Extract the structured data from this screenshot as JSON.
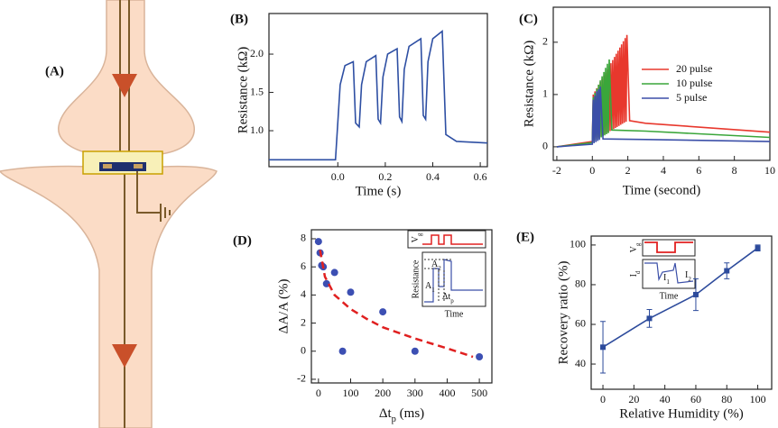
{
  "figure": {
    "panel_a_label": "(A)"
  },
  "chart_data": [
    {
      "type": "line",
      "label": "(B)",
      "x_label": "Time (s)",
      "y_label": "Resistance (kΩ)",
      "xlim": [
        -0.29,
        0.63
      ],
      "ylim": [
        0.53,
        2.53
      ],
      "xticks": [
        {
          "value": 0,
          "label": "0.0"
        },
        0.2,
        0.4,
        0.6
      ],
      "yticks": [
        {
          "value": 1,
          "label": "1.0"
        },
        1.5,
        {
          "value": 2,
          "label": "2.0"
        }
      ],
      "series": [
        {
          "color": "#2e4fa3",
          "kind": "line",
          "x": [
            -0.29,
            -0.01,
            0.01,
            0.03,
            0.065,
            0.075,
            0.09,
            0.1,
            0.12,
            0.16,
            0.17,
            0.18,
            0.19,
            0.21,
            0.25,
            0.26,
            0.27,
            0.28,
            0.3,
            0.35,
            0.36,
            0.37,
            0.38,
            0.4,
            0.44,
            0.455,
            0.5,
            0.63
          ],
          "values": [
            0.62,
            0.62,
            1.6,
            1.85,
            1.9,
            1.1,
            1.05,
            1.6,
            1.9,
            1.98,
            1.15,
            1.1,
            1.7,
            2.0,
            2.07,
            1.18,
            1.12,
            1.8,
            2.1,
            2.2,
            1.2,
            1.15,
            1.9,
            2.2,
            2.3,
            0.95,
            0.86,
            0.84
          ]
        }
      ]
    },
    {
      "type": "line",
      "label": "(C)",
      "x_label": "Time (second)",
      "y_label": "Resistance (kΩ)",
      "xlim": [
        -2.2,
        10
      ],
      "ylim": [
        -0.26,
        2.67
      ],
      "xticks": [
        -2,
        0,
        2,
        4,
        6,
        8,
        10
      ],
      "yticks": [
        0,
        1,
        2
      ],
      "legend": "center right",
      "series": [
        {
          "name": "20 pulse",
          "color": "#e8382d",
          "kind": "line",
          "x": [
            -2,
            0,
            0.05,
            0.1,
            0.15,
            0.2,
            0.25,
            0.3,
            0.35,
            0.4,
            0.45,
            0.5,
            0.55,
            0.6,
            0.65,
            0.7,
            0.75,
            0.8,
            0.85,
            0.9,
            0.95,
            1.0,
            1.05,
            1.1,
            1.15,
            1.2,
            1.25,
            1.3,
            1.35,
            1.4,
            1.45,
            1.5,
            1.55,
            1.6,
            1.65,
            1.7,
            1.75,
            1.8,
            1.85,
            1.9,
            1.95,
            2.1,
            3,
            10
          ],
          "values": [
            0,
            0.1,
            1.0,
            0.12,
            1.06,
            0.14,
            1.12,
            0.16,
            1.18,
            0.18,
            1.24,
            0.2,
            1.3,
            0.22,
            1.36,
            0.24,
            1.42,
            0.26,
            1.48,
            0.28,
            1.54,
            0.3,
            1.6,
            0.32,
            1.66,
            0.34,
            1.72,
            0.36,
            1.78,
            0.38,
            1.84,
            0.4,
            1.9,
            0.42,
            1.96,
            0.44,
            2.02,
            0.46,
            2.08,
            0.48,
            2.14,
            0.5,
            0.45,
            0.28
          ]
        },
        {
          "name": "10 pulse",
          "color": "#3aa63a",
          "kind": "line",
          "x": [
            -2,
            0,
            0.05,
            0.1,
            0.15,
            0.2,
            0.25,
            0.3,
            0.35,
            0.4,
            0.45,
            0.5,
            0.55,
            0.6,
            0.65,
            0.7,
            0.75,
            0.8,
            0.85,
            0.9,
            0.95,
            1.1,
            3,
            10
          ],
          "values": [
            0,
            0.08,
            0.95,
            0.1,
            1.03,
            0.12,
            1.11,
            0.14,
            1.19,
            0.16,
            1.27,
            0.18,
            1.35,
            0.2,
            1.43,
            0.22,
            1.51,
            0.24,
            1.59,
            0.26,
            1.67,
            0.32,
            0.3,
            0.18
          ]
        },
        {
          "name": "5 pulse",
          "color": "#3b4fa8",
          "kind": "line",
          "x": [
            -2,
            0,
            0.05,
            0.1,
            0.15,
            0.2,
            0.25,
            0.3,
            0.35,
            0.4,
            0.45,
            0.6,
            3,
            10
          ],
          "values": [
            0,
            0.05,
            0.9,
            0.07,
            0.98,
            0.09,
            1.06,
            0.11,
            1.1,
            0.13,
            1.15,
            0.15,
            0.14,
            0.1
          ]
        }
      ]
    },
    {
      "type": "scatter",
      "label": "(D)",
      "x_label": [
        "Δt",
        "p",
        " (ms)"
      ],
      "y_label": "ΔA/A (%)",
      "xlim": [
        -22,
        539
      ],
      "ylim": [
        -2.26,
        8.64
      ],
      "xticks": [
        0,
        100,
        200,
        300,
        400,
        500
      ],
      "yticks": [
        -2,
        0,
        2,
        4,
        6,
        8
      ],
      "series": [
        {
          "color": "#3c4fb3",
          "kind": "points",
          "x": [
            0,
            5,
            10,
            15,
            25,
            50,
            75,
            100,
            200,
            300,
            500
          ],
          "values": [
            7.8,
            7,
            6.1,
            6,
            4.8,
            5.6,
            0,
            4.2,
            2.8,
            0,
            -0.4
          ]
        },
        {
          "color": "#e02020",
          "kind": "dashed",
          "x": [
            5,
            20,
            50,
            100,
            150,
            200,
            300,
            400,
            480
          ],
          "values": [
            7.2,
            5.3,
            4.0,
            3.0,
            2.3,
            1.7,
            0.9,
            0.2,
            -0.4
          ]
        }
      ],
      "inset": {
        "y_label": "Resistance",
        "signal_label": [
          "V",
          "g"
        ],
        "level_1": [
          "A",
          "1"
        ],
        "level_2": [
          "A",
          "2"
        ],
        "interval": [
          "Δt",
          "p"
        ],
        "x_label": "Time"
      }
    },
    {
      "type": "line",
      "label": "(E)",
      "x_label": "Relative Humidity (%)",
      "y_label": "Recovery ratio (%)",
      "xlim": [
        -7.6,
        109
      ],
      "ylim": [
        27.3,
        104.5
      ],
      "xticks": [
        0,
        20,
        40,
        60,
        80,
        100
      ],
      "yticks": [
        40,
        60,
        80,
        100
      ],
      "series": [
        {
          "color": "#2d4b9c",
          "kind": "line",
          "marker": "square",
          "x": [
            0,
            30,
            60,
            80,
            100
          ],
          "values": [
            48.5,
            63,
            75,
            87,
            98.5
          ],
          "errors": [
            13,
            4.5,
            8,
            4,
            1.5
          ]
        }
      ],
      "inset": {
        "signal_label": [
          "V",
          "g"
        ],
        "current_label": [
          "I",
          "d"
        ],
        "level_1": [
          "I",
          "1"
        ],
        "level_2": [
          "I",
          "2"
        ],
        "x_label": "Time"
      }
    }
  ]
}
